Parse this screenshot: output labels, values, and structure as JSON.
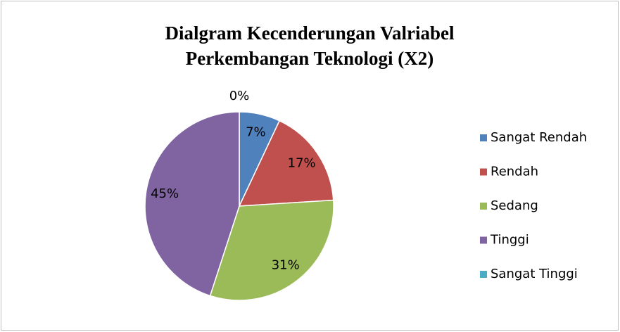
{
  "chart_data": {
    "type": "pie",
    "title": [
      "Dialgram Kecenderungan Valriabel",
      "Perkembangan Teknologi (X2)"
    ],
    "categories": [
      "Sangat Rendah",
      "Rendah",
      "Sedang",
      "Tinggi",
      "Sangat Tinggi"
    ],
    "values": [
      7,
      17,
      31,
      45,
      0
    ],
    "value_labels": [
      "7%",
      "17%",
      "31%",
      "45%",
      "0%"
    ],
    "colors": [
      "#4f81bd",
      "#c0504d",
      "#9bbb59",
      "#8064a2",
      "#4bacc6"
    ],
    "legend": "right"
  }
}
